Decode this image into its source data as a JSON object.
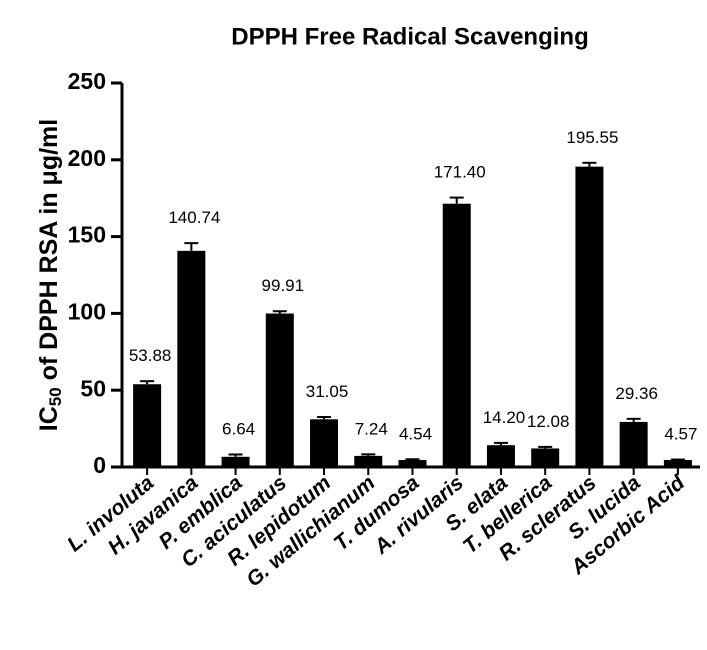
{
  "chart_data": {
    "type": "bar",
    "title": "DPPH Free Radical Scavenging",
    "ylabel": [
      "IC",
      "50",
      " of DPPH RSA in μg/ml"
    ],
    "categories": [
      "L. involuta",
      "H. javanica",
      "P. emblica",
      "C. aciculatus",
      "R. lepidotum",
      "G. wallichianum",
      "T. dumosa",
      "A. rivularis",
      "S. elata",
      "T. bellerica",
      "R. scleratus",
      "S. lucida",
      "Ascorbic Acid"
    ],
    "values": [
      53.88,
      140.74,
      6.64,
      99.91,
      31.05,
      7.24,
      4.54,
      171.4,
      14.2,
      12.08,
      195.55,
      29.36,
      4.57
    ],
    "value_labels": [
      "53.88",
      "140.74",
      "6.64",
      "99.91",
      "31.05",
      "7.24",
      "4.54",
      "171.40",
      "14.20",
      "12.08",
      "195.55",
      "29.36",
      "4.57"
    ],
    "errors": [
      2,
      5,
      1.5,
      1.5,
      1.5,
      1,
      0.5,
      4,
      1.5,
      1,
      2.5,
      2,
      0.3
    ],
    "color": "#000000",
    "ylim": [
      0,
      250
    ],
    "yticks": [
      0,
      50,
      100,
      150,
      200,
      250
    ]
  }
}
